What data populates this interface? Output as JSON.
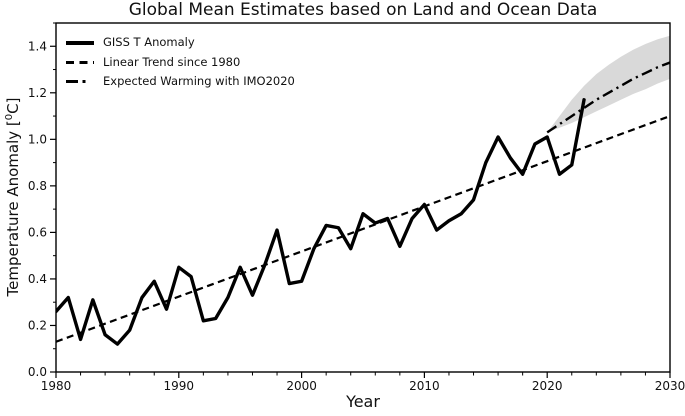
{
  "chart_data": {
    "type": "line",
    "title": "Global Mean Estimates based on Land and Ocean Data",
    "xlabel": "Year",
    "ylabel_text": "Temperature Anomaly [",
    "ylabel_sup": "0",
    "ylabel_end": "C]",
    "ylabel": "Temperature Anomaly [⁰C]",
    "xlim": [
      1980,
      2030
    ],
    "ylim": [
      0,
      1.5
    ],
    "x_major_ticks": [
      1980,
      1990,
      2000,
      2010,
      2020,
      2030
    ],
    "x_tick_labels": [
      "1980",
      "1990",
      "2000",
      "2010",
      "2020",
      "2030"
    ],
    "x_minor_step": 2,
    "y_major_ticks": [
      0.0,
      0.2,
      0.4,
      0.6,
      0.8,
      1.0,
      1.2,
      1.4
    ],
    "y_tick_labels": [
      "0.0",
      "0.2",
      "0.4",
      "0.6",
      "0.8",
      "1.0",
      "1.2",
      "1.4"
    ],
    "y_minor_step": 0.1,
    "grid": false,
    "legend_position": "upper-left",
    "legend_frame": false,
    "colors": {
      "line": "#000000",
      "trend": "#000000",
      "projection": "#000000",
      "uncertainty_band": "#d9d9d9",
      "background": "#ffffff",
      "spine": "#000000"
    },
    "series": [
      {
        "name": "GISS T Anomaly",
        "style": "solid",
        "x": [
          1980,
          1981,
          1982,
          1983,
          1984,
          1985,
          1986,
          1987,
          1988,
          1989,
          1990,
          1991,
          1992,
          1993,
          1994,
          1995,
          1996,
          1997,
          1998,
          1999,
          2000,
          2001,
          2002,
          2003,
          2004,
          2005,
          2006,
          2007,
          2008,
          2009,
          2010,
          2011,
          2012,
          2013,
          2014,
          2015,
          2016,
          2017,
          2018,
          2019,
          2020,
          2021,
          2022,
          2023
        ],
        "values": [
          0.26,
          0.32,
          0.14,
          0.31,
          0.16,
          0.12,
          0.18,
          0.32,
          0.39,
          0.27,
          0.45,
          0.41,
          0.22,
          0.23,
          0.32,
          0.45,
          0.33,
          0.46,
          0.61,
          0.38,
          0.39,
          0.53,
          0.63,
          0.62,
          0.53,
          0.68,
          0.64,
          0.66,
          0.54,
          0.66,
          0.72,
          0.61,
          0.65,
          0.68,
          0.74,
          0.9,
          1.01,
          0.92,
          0.85,
          0.98,
          1.01,
          0.85,
          0.89,
          1.17
        ]
      },
      {
        "name": "Linear Trend since 1980",
        "style": "dashed",
        "x": [
          1980,
          2030
        ],
        "values": [
          0.13,
          1.1
        ]
      },
      {
        "name": "Expected Warming with IMO2020",
        "style": "dashdot",
        "x": [
          2020,
          2021,
          2022,
          2023,
          2024,
          2025,
          2026,
          2027,
          2028,
          2029,
          2030
        ],
        "values": [
          1.03,
          1.065,
          1.1,
          1.135,
          1.17,
          1.2,
          1.23,
          1.26,
          1.285,
          1.31,
          1.33
        ],
        "band_upper": [
          1.03,
          1.1,
          1.17,
          1.23,
          1.28,
          1.32,
          1.355,
          1.385,
          1.41,
          1.43,
          1.445
        ],
        "band_lower": [
          1.03,
          1.05,
          1.07,
          1.095,
          1.12,
          1.145,
          1.17,
          1.195,
          1.215,
          1.24,
          1.26
        ]
      }
    ]
  }
}
